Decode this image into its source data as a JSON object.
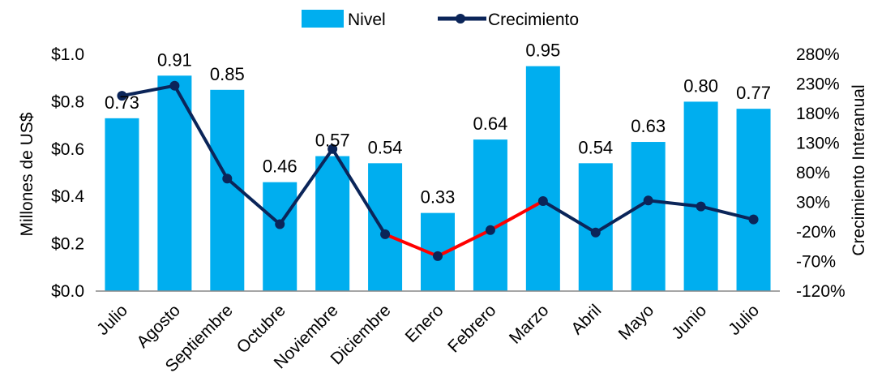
{
  "chart_data": {
    "type": "bar",
    "categories": [
      "Julio",
      "Agosto",
      "Septiembre",
      "Octubre",
      "Noviembre",
      "Diciembre",
      "Enero",
      "Febrero",
      "Marzo",
      "Abril",
      "Mayo",
      "Junio",
      "Julio"
    ],
    "series": [
      {
        "name": "Nivel",
        "type": "bar",
        "axis": "left",
        "color": "#00AEEF",
        "values": [
          0.73,
          0.91,
          0.85,
          0.46,
          0.57,
          0.54,
          0.33,
          0.64,
          0.95,
          0.54,
          0.63,
          0.8,
          0.77
        ],
        "labels": [
          "0.73",
          "0.91",
          "0.85",
          "0.46",
          "0.57",
          "0.54",
          "0.33",
          "0.64",
          "0.95",
          "0.54",
          "0.63",
          "0.80",
          "0.77"
        ]
      },
      {
        "name": "Crecimiento",
        "type": "line",
        "axis": "right",
        "color": "#0B2559",
        "highlight_color": "#FF0000",
        "highlight_segments": [
          [
            5,
            6
          ],
          [
            6,
            7
          ],
          [
            7,
            8
          ]
        ],
        "values": [
          210,
          227,
          70,
          -7,
          120,
          -24,
          -61,
          -17,
          32,
          -21,
          33,
          23,
          1
        ]
      }
    ],
    "ylabel": "Millones de US$",
    "y2label": "Crecimiento Interanual",
    "ylim": [
      0,
      1.0
    ],
    "y2lim": [
      -120,
      280
    ],
    "yticks": [
      "$0.0",
      "$0.2",
      "$0.4",
      "$0.6",
      "$0.8",
      "$1.0"
    ],
    "y2ticks": [
      "-120%",
      "-70%",
      "-20%",
      "30%",
      "80%",
      "130%",
      "180%",
      "230%",
      "280%"
    ],
    "legend": [
      "Nivel",
      "Crecimiento"
    ],
    "legend_position": "top",
    "grid": false
  }
}
